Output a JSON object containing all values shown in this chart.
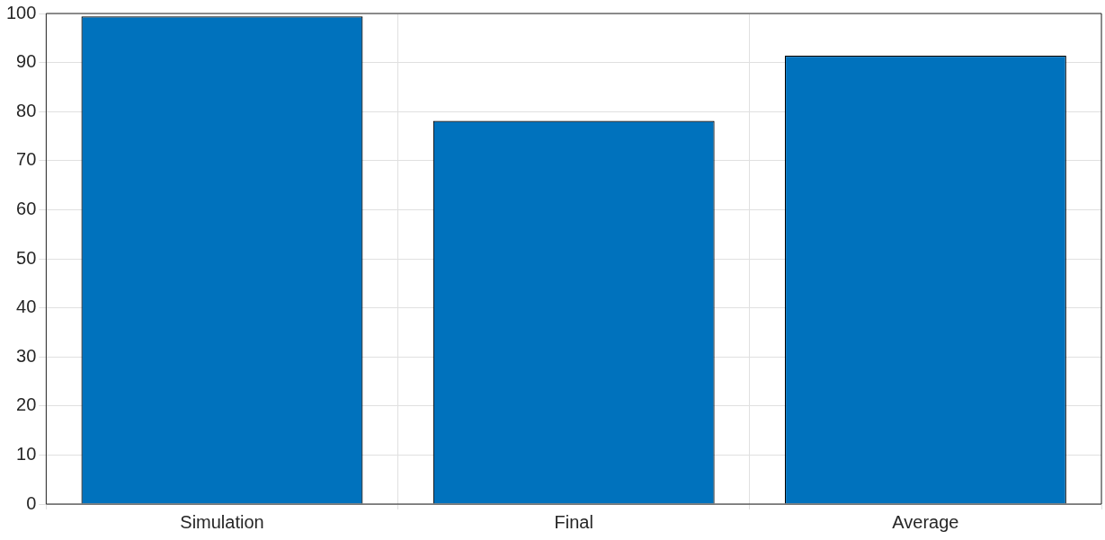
{
  "chart_data": {
    "type": "bar",
    "categories": [
      "Simulation",
      "Final",
      "Average"
    ],
    "values": [
      99.4,
      78.1,
      91.4
    ],
    "color": "#0072bd",
    "ylim": [
      0,
      100
    ],
    "yticks": [
      0,
      10,
      20,
      30,
      40,
      50,
      60,
      70,
      80,
      90,
      100
    ],
    "grid": true
  }
}
